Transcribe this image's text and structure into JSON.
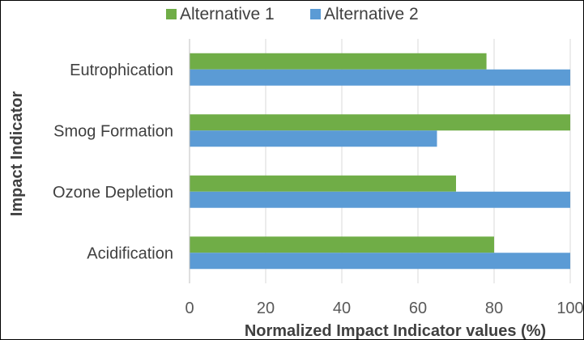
{
  "chart_data": {
    "type": "bar",
    "orientation": "horizontal",
    "categories": [
      "Eutrophication",
      "Smog Formation",
      "Ozone Depletion",
      "Acidification"
    ],
    "series": [
      {
        "name": "Alternative 1",
        "color": "#70ad47",
        "values": [
          78,
          100,
          70,
          80
        ]
      },
      {
        "name": "Alternative 2",
        "color": "#5b9bd5",
        "values": [
          100,
          65,
          100,
          100
        ]
      }
    ],
    "xlabel": "Normalized Impact Indicator values (%)",
    "ylabel": "Impact Indicator",
    "xlim": [
      0,
      100
    ],
    "xticks": [
      "0",
      "20",
      "40",
      "60",
      "80",
      "100"
    ],
    "legend_position": "top",
    "grid": "vertical"
  }
}
